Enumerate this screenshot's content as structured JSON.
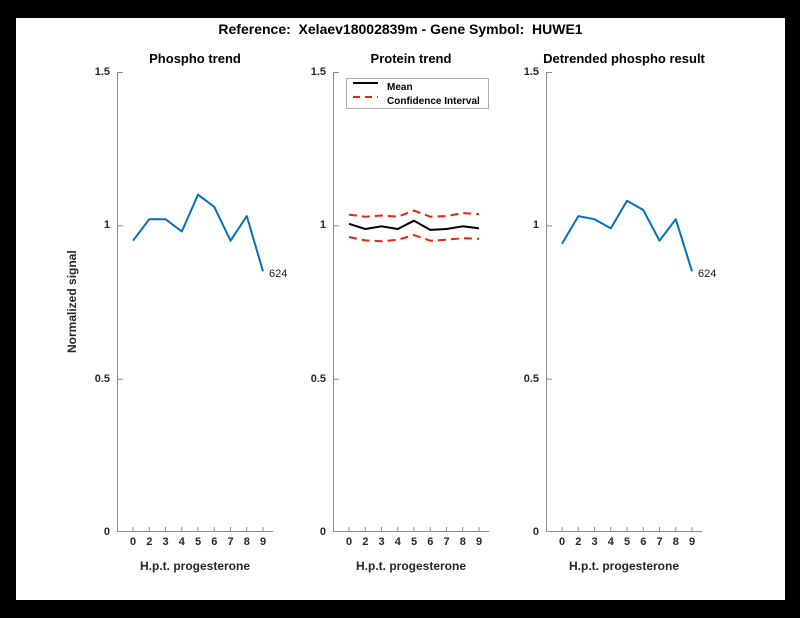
{
  "figure_title": "Reference:  Xelaev18002839m - Gene Symbol:  HUWE1",
  "style": {
    "axis_line_color": "#8c8c8c",
    "tick_text_color": "#262626",
    "blue": "#0072BD",
    "red": "#ee2211",
    "black": "#000000",
    "background": "#ffffff",
    "frame": "#000000"
  },
  "shared_axes": {
    "xlabel": "H.p.t. progesterone",
    "ylabel": "Normalized signal",
    "x_tick_labels": [
      "0",
      "2",
      "3",
      "4",
      "5",
      "6",
      "7",
      "8",
      "9"
    ],
    "y_tick_labels": [
      "0",
      "0.5",
      "1",
      "1.5"
    ],
    "y_tick_values": [
      0,
      0.5,
      1,
      1.5
    ],
    "ylim": [
      0,
      1.5
    ],
    "grid": "off"
  },
  "chart_data": [
    {
      "type": "line",
      "title": "Phospho trend",
      "xlabel": "H.p.t. progesterone",
      "ylabel": "Normalized signal",
      "x": [
        0,
        2,
        3,
        4,
        5,
        6,
        7,
        8,
        9
      ],
      "values": [
        0.95,
        1.02,
        1.02,
        0.98,
        1.1,
        1.06,
        0.95,
        1.03,
        0.85
      ],
      "line_color": "#0072BD",
      "end_label": "624",
      "ylim": [
        0,
        1.5
      ]
    },
    {
      "type": "line",
      "title": "Protein trend",
      "xlabel": "H.p.t. progesterone",
      "x": [
        0,
        2,
        3,
        4,
        5,
        6,
        7,
        8,
        9
      ],
      "series": [
        {
          "name": "Mean",
          "color": "#000000",
          "style": "solid",
          "values": [
            1.005,
            0.988,
            0.997,
            0.988,
            1.015,
            0.985,
            0.988,
            0.997,
            0.99
          ]
        },
        {
          "name": "Confidence Interval upper",
          "color": "#ee2211",
          "style": "dashed",
          "values": [
            1.035,
            1.028,
            1.032,
            1.028,
            1.048,
            1.028,
            1.03,
            1.04,
            1.037
          ]
        },
        {
          "name": "Confidence Interval lower",
          "color": "#ee2211",
          "style": "dashed",
          "values": [
            0.962,
            0.951,
            0.948,
            0.953,
            0.968,
            0.95,
            0.953,
            0.958,
            0.956
          ]
        }
      ],
      "legend": [
        {
          "label": "Mean",
          "color": "#000000",
          "style": "solid"
        },
        {
          "label": "Confidence Interval",
          "color": "#ee2211",
          "style": "dashed"
        }
      ],
      "legend_position": "northwest",
      "ylim": [
        0,
        1.5
      ]
    },
    {
      "type": "line",
      "title": "Detrended phospho result",
      "xlabel": "H.p.t. progesterone",
      "x": [
        0,
        2,
        3,
        4,
        5,
        6,
        7,
        8,
        9
      ],
      "values": [
        0.94,
        1.03,
        1.02,
        0.99,
        1.08,
        1.05,
        0.95,
        1.02,
        0.85
      ],
      "line_color": "#0072BD",
      "end_label": "624",
      "ylim": [
        0,
        1.5
      ]
    }
  ]
}
